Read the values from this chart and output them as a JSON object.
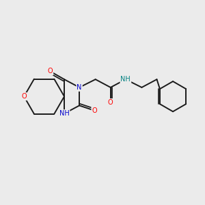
{
  "background_color": "#ebebeb",
  "bond_color": "#1a1a1a",
  "atom_colors": {
    "O": "#ff0000",
    "N": "#0000cc",
    "NH": "#008080",
    "C": "#1a1a1a"
  },
  "figsize": [
    3.0,
    3.0
  ],
  "dpi": 100
}
